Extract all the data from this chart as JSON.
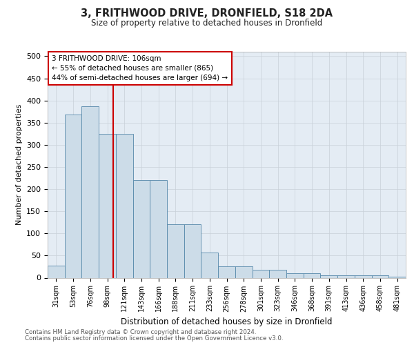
{
  "title": "3, FRITHWOOD DRIVE, DRONFIELD, S18 2DA",
  "subtitle": "Size of property relative to detached houses in Dronfield",
  "xlabel": "Distribution of detached houses by size in Dronfield",
  "ylabel": "Number of detached properties",
  "footer1": "Contains HM Land Registry data © Crown copyright and database right 2024.",
  "footer2": "Contains public sector information licensed under the Open Government Licence v3.0.",
  "bar_labels": [
    "31sqm",
    "53sqm",
    "76sqm",
    "98sqm",
    "121sqm",
    "143sqm",
    "166sqm",
    "188sqm",
    "211sqm",
    "233sqm",
    "256sqm",
    "278sqm",
    "301sqm",
    "323sqm",
    "346sqm",
    "368sqm",
    "391sqm",
    "413sqm",
    "436sqm",
    "458sqm",
    "481sqm"
  ],
  "bar_values": [
    28,
    368,
    387,
    325,
    325,
    220,
    220,
    120,
    120,
    57,
    25,
    25,
    18,
    18,
    10,
    10,
    5,
    5,
    5,
    5,
    3
  ],
  "bar_color": "#ccdce8",
  "bar_edge_color": "#5588aa",
  "grid_color": "#c8d0d8",
  "bg_color": "#e4ecf4",
  "annotation_text": "3 FRITHWOOD DRIVE: 106sqm\n← 55% of detached houses are smaller (865)\n44% of semi-detached houses are larger (694) →",
  "annotation_box_facecolor": "#ffffff",
  "annotation_border_color": "#cc0000",
  "vline_color": "#cc0000",
  "ylim": [
    0,
    510
  ],
  "yticks": [
    0,
    50,
    100,
    150,
    200,
    250,
    300,
    350,
    400,
    450,
    500
  ]
}
